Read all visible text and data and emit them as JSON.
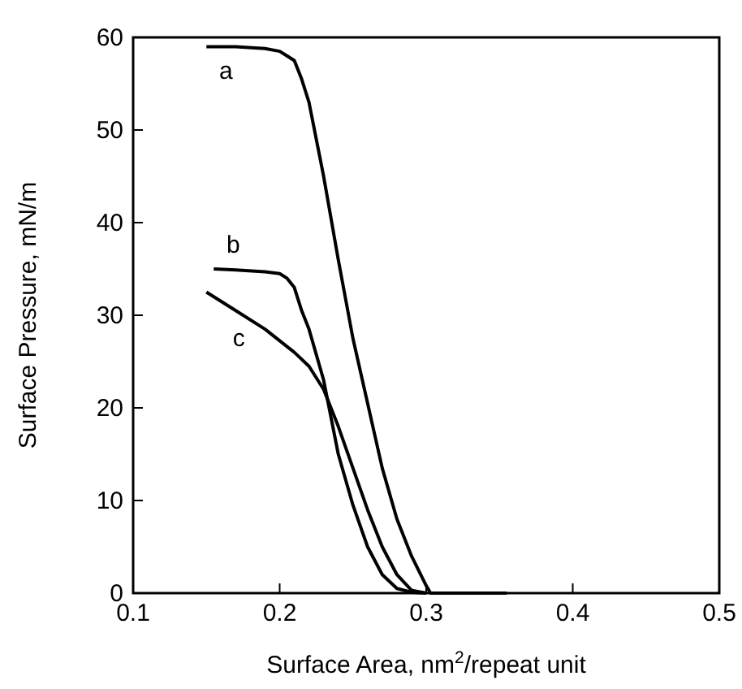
{
  "chart_data": {
    "type": "line",
    "xlabel": "Surface Area, nm$^{2}$/repeat unit",
    "ylabel": "Surface Pressure, mN/m",
    "xlim": [
      0.1,
      0.5
    ],
    "ylim": [
      0,
      60
    ],
    "xticks": [
      0.1,
      0.2,
      0.3,
      0.4,
      0.5
    ],
    "yticks": [
      0,
      10,
      20,
      30,
      40,
      50,
      60
    ],
    "grid": false,
    "legend": false,
    "marker": "none",
    "line_style": "solid",
    "series": [
      {
        "name": "a",
        "color": "#000000",
        "x": [
          0.15,
          0.17,
          0.19,
          0.2,
          0.205,
          0.21,
          0.215,
          0.22,
          0.23,
          0.24,
          0.25,
          0.26,
          0.27,
          0.28,
          0.29,
          0.3,
          0.303,
          0.32,
          0.355
        ],
        "values": [
          59,
          59,
          58.8,
          58.5,
          58,
          57.5,
          55.5,
          53,
          45,
          36,
          27.5,
          20.5,
          13.5,
          8,
          4,
          0.8,
          0,
          0,
          0
        ]
      },
      {
        "name": "b",
        "color": "#000000",
        "x": [
          0.155,
          0.17,
          0.19,
          0.2,
          0.205,
          0.21,
          0.215,
          0.22,
          0.23,
          0.24,
          0.25,
          0.26,
          0.27,
          0.28,
          0.29,
          0.3
        ],
        "values": [
          35,
          34.9,
          34.7,
          34.5,
          34,
          33,
          30.5,
          28.5,
          23,
          15,
          9.5,
          5,
          2,
          0.5,
          0.1,
          0
        ]
      },
      {
        "name": "c",
        "color": "#000000",
        "x": [
          0.15,
          0.17,
          0.19,
          0.21,
          0.22,
          0.23,
          0.24,
          0.25,
          0.26,
          0.27,
          0.28,
          0.29,
          0.3
        ],
        "values": [
          32.5,
          30.5,
          28.5,
          26,
          24.5,
          22,
          18,
          13.5,
          9,
          5,
          2,
          0.3,
          0
        ]
      }
    ]
  }
}
